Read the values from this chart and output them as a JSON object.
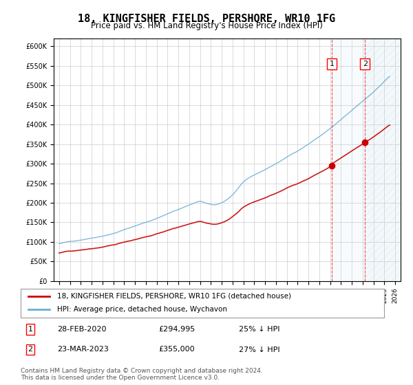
{
  "title": "18, KINGFISHER FIELDS, PERSHORE, WR10 1FG",
  "subtitle": "Price paid vs. HM Land Registry's House Price Index (HPI)",
  "legend_line1": "18, KINGFISHER FIELDS, PERSHORE, WR10 1FG (detached house)",
  "legend_line2": "HPI: Average price, detached house, Wychavon",
  "footnote": "Contains HM Land Registry data © Crown copyright and database right 2024.\nThis data is licensed under the Open Government Licence v3.0.",
  "transaction1": {
    "label": "1",
    "date": "28-FEB-2020",
    "price": "£294,995",
    "note": "25% ↓ HPI"
  },
  "transaction2": {
    "label": "2",
    "date": "23-MAR-2023",
    "price": "£355,000",
    "note": "27% ↓ HPI"
  },
  "hpi_color": "#6baed6",
  "price_color": "#cc0000",
  "marker1_x": 2020.16,
  "marker2_x": 2023.22,
  "marker1_price": 294995,
  "marker2_price": 355000,
  "ylim": [
    0,
    620000
  ],
  "xlim_start": 1994.5,
  "xlim_end": 2026.5,
  "background_hatch_start": 2023.22,
  "shaded_region_start": 2020.16,
  "shaded_region_end": 2023.22
}
